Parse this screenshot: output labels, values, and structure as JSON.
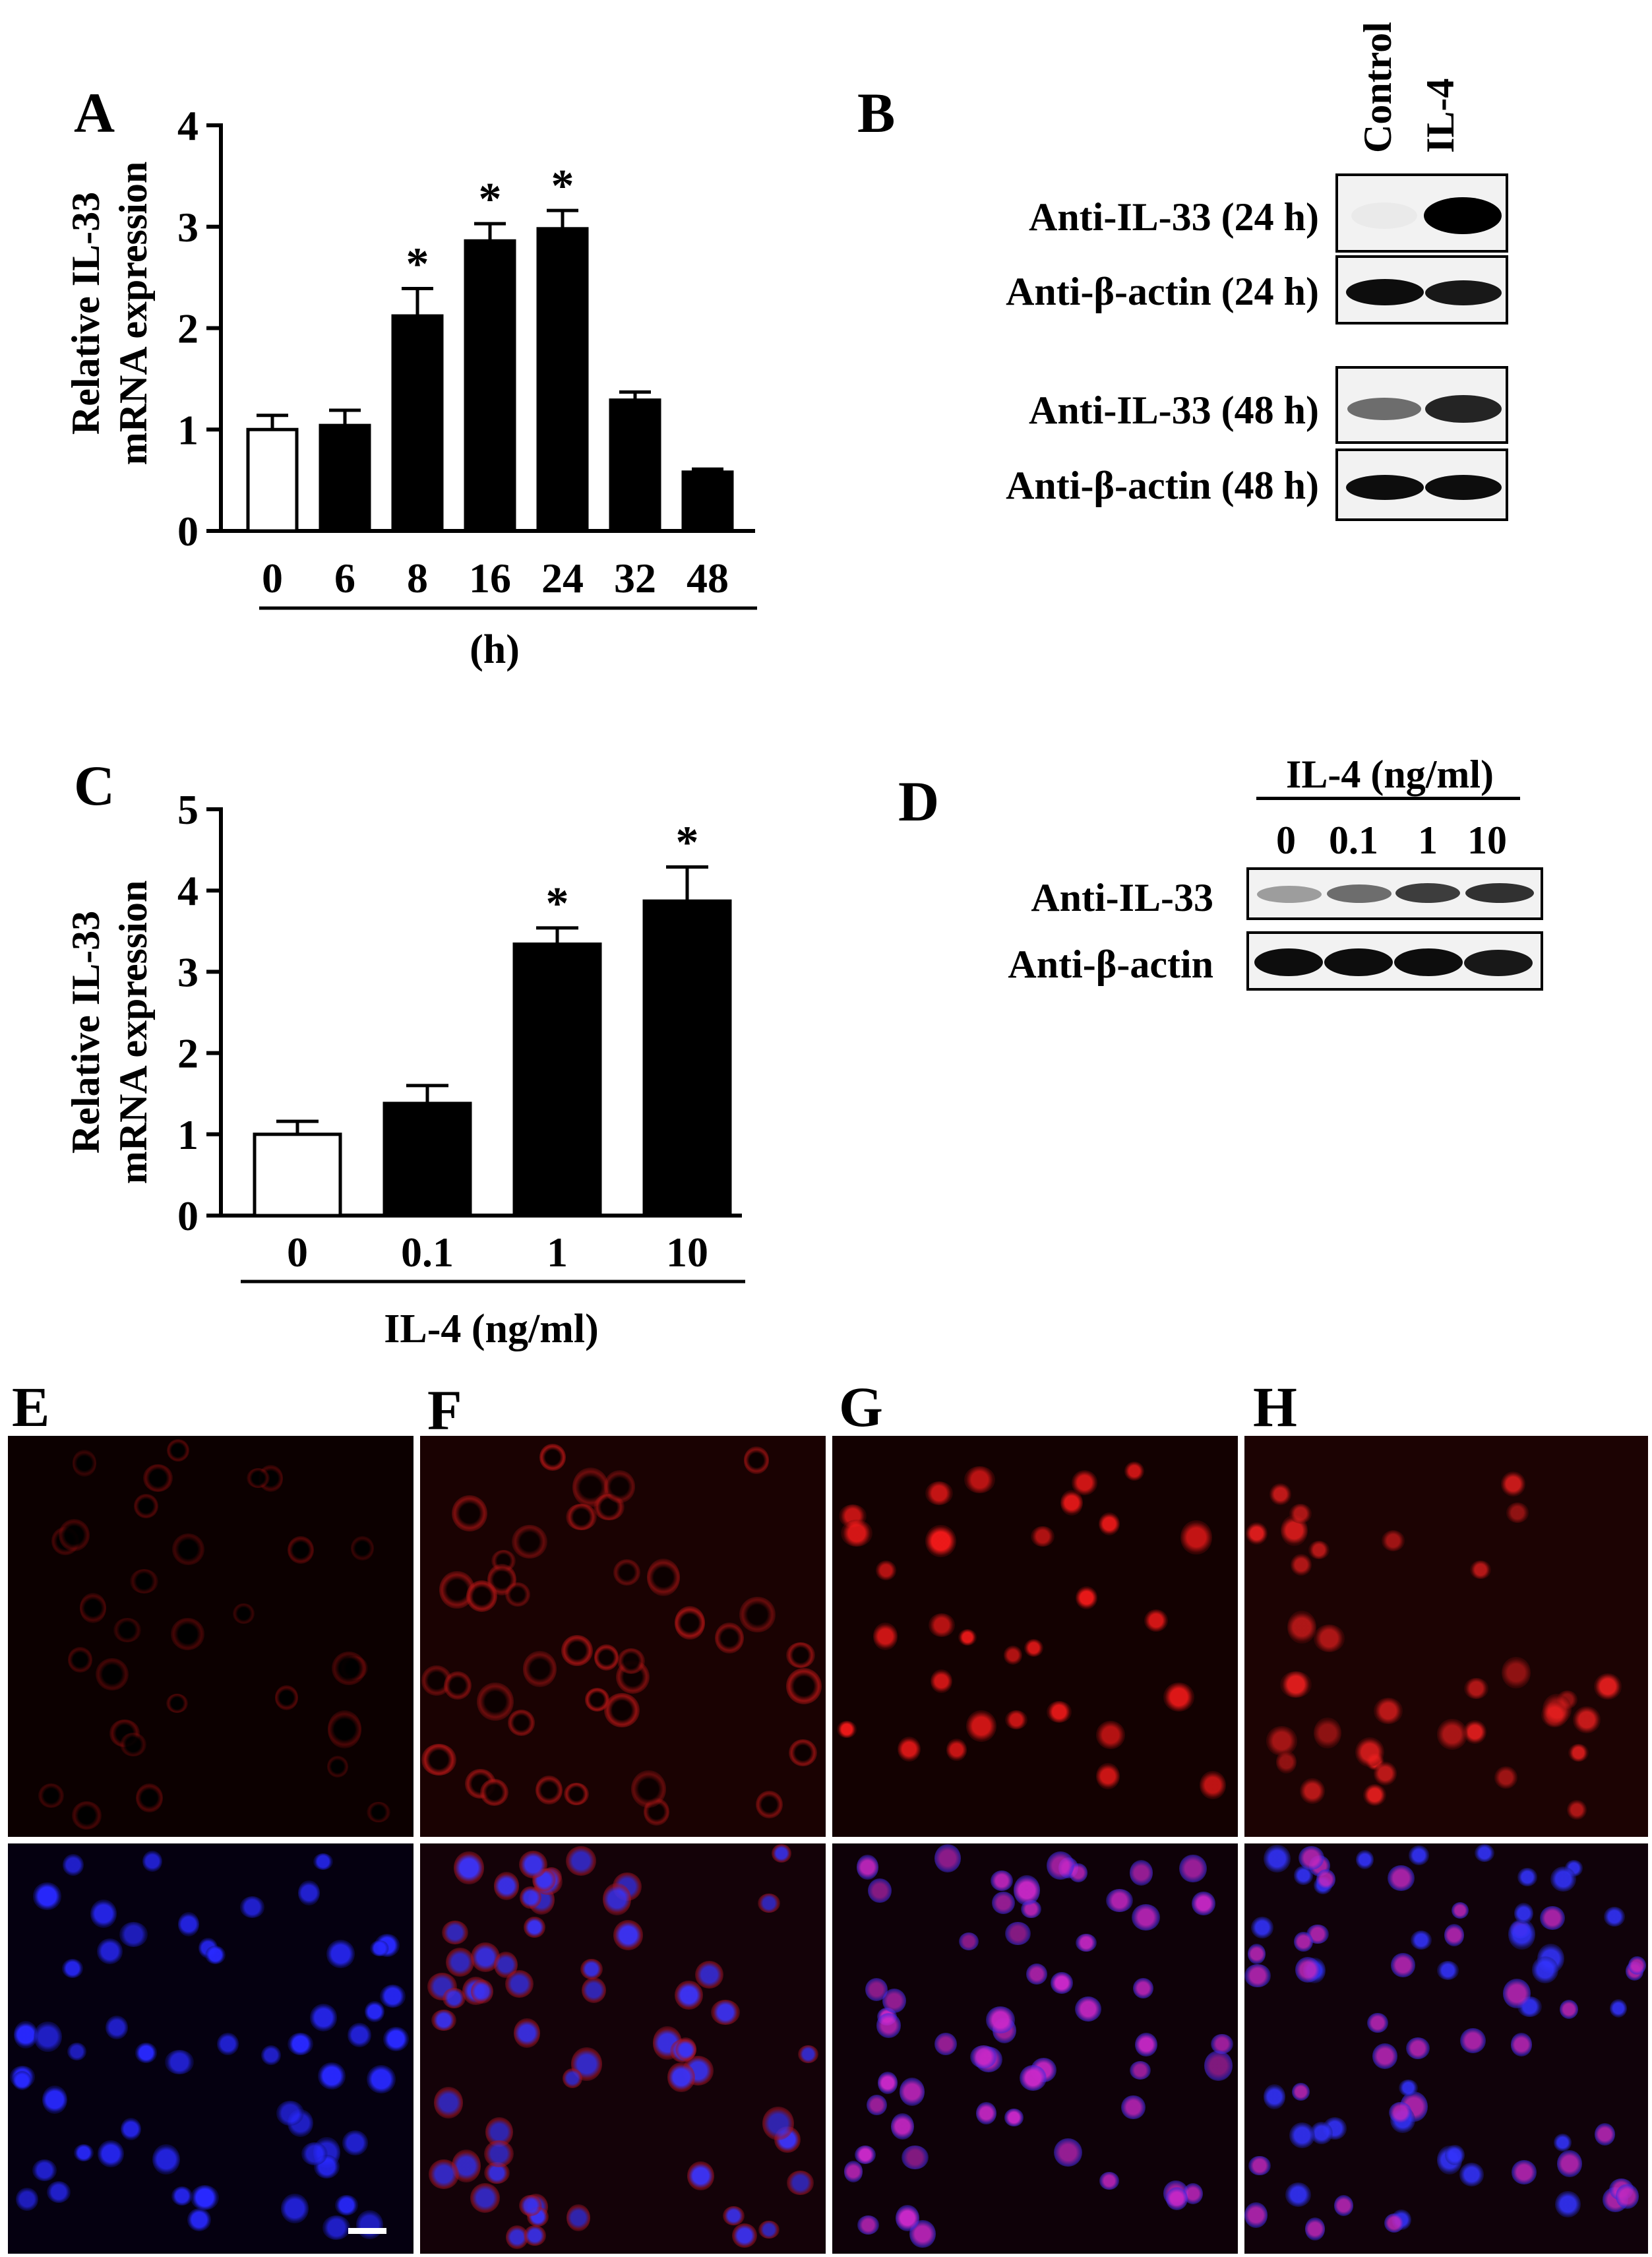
{
  "panels": {
    "A": "A",
    "B": "B",
    "C": "C",
    "D": "D",
    "E": "E",
    "F": "F",
    "G": "G",
    "H": "H"
  },
  "chart_data": [
    {
      "panel": "A",
      "type": "bar",
      "categories": [
        "0",
        "6",
        "8",
        "16",
        "24",
        "32",
        "48"
      ],
      "values": [
        1.0,
        1.04,
        2.12,
        2.86,
        2.98,
        1.29,
        0.58
      ],
      "errors": [
        0.14,
        0.15,
        0.27,
        0.17,
        0.18,
        0.08,
        0.03
      ],
      "significant": [
        false,
        false,
        true,
        true,
        true,
        false,
        false
      ],
      "bar_fill": [
        "#ffffff",
        "#000000",
        "#000000",
        "#000000",
        "#000000",
        "#000000",
        "#000000"
      ],
      "significance_mark": "*",
      "ylabel_line1": "Relative IL-33",
      "ylabel_line2": "mRNA expression",
      "xlabel": "(h)",
      "ylim": [
        0,
        4
      ],
      "yticks": [
        "0",
        "1",
        "2",
        "3",
        "4"
      ],
      "grid": false
    },
    {
      "panel": "C",
      "type": "bar",
      "categories": [
        "0",
        "0.1",
        "1",
        "10"
      ],
      "values": [
        1.0,
        1.38,
        3.34,
        3.87
      ],
      "errors": [
        0.16,
        0.22,
        0.2,
        0.42
      ],
      "significant": [
        false,
        false,
        true,
        true
      ],
      "bar_fill": [
        "#ffffff",
        "#000000",
        "#000000",
        "#000000"
      ],
      "significance_mark": "*",
      "ylabel_line1": "Relative IL-33",
      "ylabel_line2": "mRNA expression",
      "xlabel": "IL-4 (ng/ml)",
      "ylim": [
        0,
        5
      ],
      "yticks": [
        "0",
        "1",
        "2",
        "3",
        "4",
        "5"
      ],
      "grid": false
    }
  ],
  "blot_B": {
    "lanes": [
      "Control",
      "IL-4"
    ],
    "rows": [
      {
        "label": "Anti-IL-33 (24 h)",
        "intensity": [
          0.03,
          1.0
        ]
      },
      {
        "label": "Anti-β-actin (24 h)",
        "intensity": [
          0.95,
          0.9
        ]
      },
      {
        "label": "Anti-IL-33 (48 h)",
        "intensity": [
          0.55,
          0.85
        ]
      },
      {
        "label": "Anti-β-actin (48 h)",
        "intensity": [
          0.95,
          0.95
        ]
      }
    ]
  },
  "blot_D": {
    "header": "IL-4 (ng/ml)",
    "lanes": [
      "0",
      "0.1",
      "1",
      "10"
    ],
    "rows": [
      {
        "label": "Anti-IL-33",
        "intensity": [
          0.35,
          0.55,
          0.75,
          0.8
        ]
      },
      {
        "label": "Anti-β-actin",
        "intensity": [
          0.95,
          0.95,
          0.95,
          0.9
        ]
      }
    ]
  },
  "colors": {
    "ink": "#000000",
    "il33_stain": "#e01010",
    "nucleus_stain": "#2a2aff",
    "blot_background": "#f2f2f2"
  }
}
